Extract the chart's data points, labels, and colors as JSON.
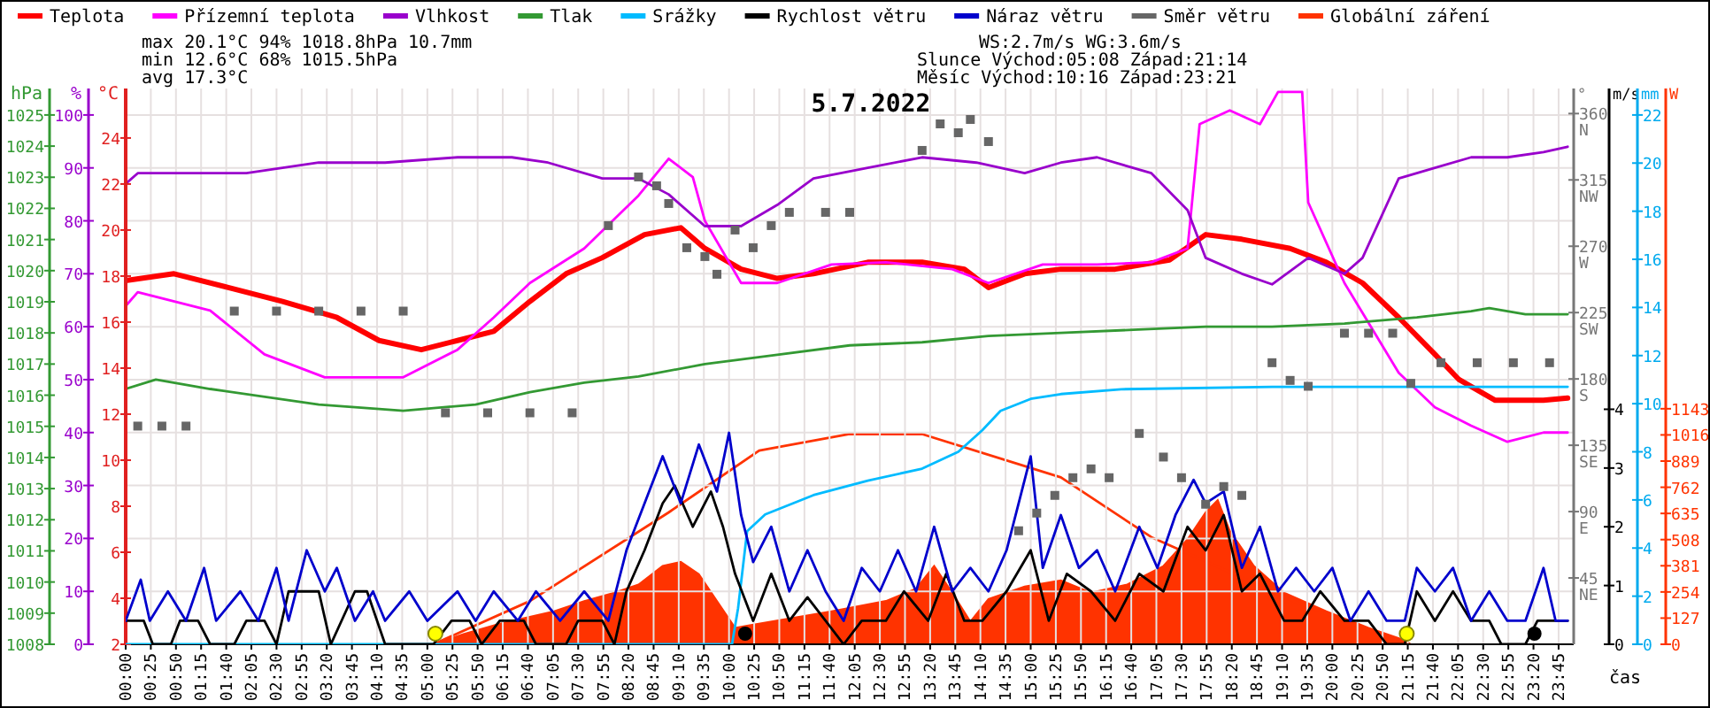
{
  "chart_data": [
    {
      "type": "line",
      "title": "5.7.2022",
      "xlabel": "čas",
      "ylabel": "%",
      "y2label": "°C",
      "y3label": "hPa",
      "annotations": [
        "max 20.1°C 94% 1018.8hPa 10.7mm",
        "min 12.6°C 68% 1015.5hPa",
        "avg 17.3°C",
        "WS:2.7m/s WG:3.6m/s",
        "Slunce Východ:05:08 Západ:21:14",
        "Měsíc Východ:10:16 Západ:23:21"
      ],
      "legend": "top",
      "grid": true,
      "xlim": [
        0,
        24
      ],
      "xticks": [
        {
          "value": 0,
          "label": "00:00"
        },
        {
          "value": 0.4167,
          "label": "00:25"
        },
        {
          "value": 0.8333,
          "label": "00:50"
        },
        {
          "value": 1.25,
          "label": "01:15"
        },
        {
          "value": 1.6667,
          "label": "01:40"
        },
        {
          "value": 2.0833,
          "label": "02:05"
        },
        {
          "value": 2.5,
          "label": "02:30"
        },
        {
          "value": 2.9167,
          "label": "02:55"
        },
        {
          "value": 3.3333,
          "label": "03:20"
        },
        {
          "value": 3.75,
          "label": "03:45"
        },
        {
          "value": 4.1667,
          "label": "04:10"
        },
        {
          "value": 4.5833,
          "label": "04:35"
        },
        {
          "value": 5,
          "label": "05:00"
        },
        {
          "value": 5.4167,
          "label": "05:25"
        },
        {
          "value": 5.8333,
          "label": "05:50"
        },
        {
          "value": 6.25,
          "label": "06:15"
        },
        {
          "value": 6.6667,
          "label": "06:40"
        },
        {
          "value": 7.0833,
          "label": "07:05"
        },
        {
          "value": 7.5,
          "label": "07:30"
        },
        {
          "value": 7.9167,
          "label": "07:55"
        },
        {
          "value": 8.3333,
          "label": "08:20"
        },
        {
          "value": 8.75,
          "label": "08:45"
        },
        {
          "value": 9.1667,
          "label": "09:10"
        },
        {
          "value": 9.5833,
          "label": "09:35"
        },
        {
          "value": 10,
          "label": "10:00"
        },
        {
          "value": 10.4167,
          "label": "10:25"
        },
        {
          "value": 10.8333,
          "label": "10:50"
        },
        {
          "value": 11.25,
          "label": "11:15"
        },
        {
          "value": 11.6667,
          "label": "11:40"
        },
        {
          "value": 12.0833,
          "label": "12:05"
        },
        {
          "value": 12.5,
          "label": "12:30"
        },
        {
          "value": 12.9167,
          "label": "12:55"
        },
        {
          "value": 13.3333,
          "label": "13:20"
        },
        {
          "value": 13.75,
          "label": "13:45"
        },
        {
          "value": 14.1667,
          "label": "14:10"
        },
        {
          "value": 14.5833,
          "label": "14:35"
        },
        {
          "value": 15,
          "label": "15:00"
        },
        {
          "value": 15.4167,
          "label": "15:25"
        },
        {
          "value": 15.8333,
          "label": "15:50"
        },
        {
          "value": 16.25,
          "label": "16:15"
        },
        {
          "value": 16.6667,
          "label": "16:40"
        },
        {
          "value": 17.0833,
          "label": "17:05"
        },
        {
          "value": 17.5,
          "label": "17:30"
        },
        {
          "value": 17.9167,
          "label": "17:55"
        },
        {
          "value": 18.3333,
          "label": "18:20"
        },
        {
          "value": 18.75,
          "label": "18:45"
        },
        {
          "value": 19.1667,
          "label": "19:10"
        },
        {
          "value": 19.5833,
          "label": "19:35"
        },
        {
          "value": 20,
          "label": "20:00"
        },
        {
          "value": 20.4167,
          "label": "20:25"
        },
        {
          "value": 20.8333,
          "label": "20:50"
        },
        {
          "value": 21.25,
          "label": "21:15"
        },
        {
          "value": 21.6667,
          "label": "21:40"
        },
        {
          "value": 22.0833,
          "label": "22:05"
        },
        {
          "value": 22.5,
          "label": "22:30"
        },
        {
          "value": 22.9167,
          "label": "22:55"
        },
        {
          "value": 23.3333,
          "label": "23:20"
        },
        {
          "value": 23.75,
          "label": "23:45"
        }
      ],
      "ylim": [
        0,
        105
      ],
      "yticks": [
        0,
        10,
        20,
        30,
        40,
        50,
        60,
        70,
        80,
        90,
        100
      ],
      "y2lim": [
        2,
        26.15
      ],
      "y2ticks": [
        2,
        4,
        6,
        8,
        10,
        12,
        14,
        16,
        18,
        20,
        22,
        24
      ],
      "y3lim": [
        1008,
        1025.85
      ],
      "y3ticks": [
        1008,
        1009,
        1010,
        1011,
        1012,
        1013,
        1014,
        1015,
        1016,
        1017,
        1018,
        1019,
        1020,
        1021,
        1022,
        1023,
        1024,
        1025
      ],
      "series": [
        {
          "name": "Teplota",
          "color": "#ff0000",
          "axis": "y2",
          "x": [
            0,
            0.8,
            1.7,
            2.6,
            3.5,
            4.2,
            4.9,
            5.5,
            6.1,
            6.7,
            7.3,
            7.9,
            8.6,
            9.2,
            9.6,
            10.2,
            10.8,
            11.4,
            12.3,
            13.2,
            13.9,
            14.3,
            14.9,
            15.5,
            16.4,
            17.3,
            17.9,
            18.5,
            19.3,
            19.9,
            20.5,
            21.1,
            21.7,
            22.1,
            22.7,
            23.5,
            23.9
          ],
          "values": [
            17.8,
            18.1,
            17.5,
            16.9,
            16.2,
            15.2,
            14.8,
            15.2,
            15.6,
            16.9,
            18.1,
            18.8,
            19.8,
            20.1,
            19.2,
            18.3,
            17.9,
            18.1,
            18.6,
            18.6,
            18.3,
            17.5,
            18.1,
            18.3,
            18.3,
            18.7,
            19.8,
            19.6,
            19.2,
            18.6,
            17.7,
            16.2,
            14.6,
            13.5,
            12.6,
            12.6,
            12.7
          ]
        },
        {
          "name": "Přízemní teplota",
          "color": "#ff00ff",
          "axis": "y2",
          "x": [
            0,
            0.2,
            1.4,
            2.3,
            3.3,
            4.6,
            5.5,
            6.1,
            6.7,
            7.6,
            8.5,
            9.0,
            9.4,
            9.6,
            10.2,
            10.8,
            11.7,
            12.6,
            13.7,
            14.3,
            15.2,
            16.1,
            17.0,
            17.6,
            17.8,
            18.3,
            18.8,
            19.1,
            19.5,
            19.6,
            20.2,
            21.1,
            21.7,
            22.3,
            22.9,
            23.5,
            23.9
          ],
          "values": [
            16.7,
            17.3,
            16.5,
            14.6,
            13.6,
            13.6,
            14.8,
            16.2,
            17.7,
            19.2,
            21.5,
            23.1,
            22.3,
            20.4,
            17.7,
            17.7,
            18.5,
            18.6,
            18.3,
            17.7,
            18.5,
            18.5,
            18.6,
            19.2,
            24.6,
            25.2,
            24.6,
            26.0,
            26.0,
            21.2,
            17.7,
            13.8,
            12.3,
            11.5,
            10.8,
            11.2,
            11.2
          ]
        },
        {
          "name": "Vlhkost",
          "color": "#9900cc",
          "x": [
            0,
            0.2,
            2.0,
            2.6,
            3.2,
            4.3,
            5.5,
            6.4,
            7.0,
            7.9,
            8.5,
            9.0,
            9.6,
            10.2,
            10.8,
            11.4,
            12.3,
            13.2,
            14.1,
            14.9,
            15.5,
            16.1,
            17.0,
            17.6,
            17.9,
            18.5,
            19.0,
            19.6,
            20.2,
            20.5,
            21.1,
            21.7,
            22.3,
            22.9,
            23.5,
            23.9
          ],
          "values": [
            87,
            89,
            89,
            90,
            91,
            91,
            92,
            92,
            91,
            88,
            88,
            85,
            79,
            79,
            83,
            88,
            90,
            92,
            91,
            89,
            91,
            92,
            89,
            82,
            73,
            70,
            68,
            73,
            70,
            73,
            88,
            90,
            92,
            92,
            93,
            94
          ]
        },
        {
          "name": "Tlak",
          "color": "#339933",
          "axis": "y3",
          "x": [
            0,
            0.5,
            1.4,
            3.2,
            4.6,
            5.8,
            6.7,
            7.6,
            8.5,
            9.6,
            10.8,
            12.0,
            13.2,
            14.3,
            15.5,
            16.7,
            17.9,
            19.0,
            20.2,
            21.4,
            22.3,
            22.6,
            23.2,
            23.9
          ],
          "values": [
            1016.2,
            1016.5,
            1016.2,
            1015.7,
            1015.5,
            1015.7,
            1016.1,
            1016.4,
            1016.6,
            1017.0,
            1017.3,
            1017.6,
            1017.7,
            1017.9,
            1018.0,
            1018.1,
            1018.2,
            1018.2,
            1018.3,
            1018.5,
            1018.7,
            1018.8,
            1018.6,
            1018.6
          ]
        }
      ]
    },
    {
      "type": "line",
      "ylabel": "°",
      "y2label": "m/s",
      "y3label": "mm",
      "legend": "top",
      "tick_labels": "y",
      "xlim": [
        0,
        24
      ],
      "ylim": [
        0,
        377
      ],
      "yticks": [
        {
          "value": 45,
          "label": "45 NE"
        },
        {
          "value": 90,
          "label": "90 E"
        },
        {
          "value": 135,
          "label": "135 SE"
        },
        {
          "value": 180,
          "label": "180 S"
        },
        {
          "value": 225,
          "label": "225 SW"
        },
        {
          "value": 270,
          "label": "270 W"
        },
        {
          "value": 315,
          "label": "315 NW"
        },
        {
          "value": 360,
          "label": "360 N"
        }
      ],
      "y2lim": [
        0,
        9.46
      ],
      "y2ticks": [
        0,
        1,
        2,
        3,
        4
      ],
      "y3lim": [
        0,
        23.1
      ],
      "y3ticks": [
        0,
        2,
        4,
        6,
        8,
        10,
        12,
        14,
        16,
        18,
        20,
        22
      ],
      "series": [
        {
          "name": "Srážky",
          "color": "#00bbff",
          "axis": "y3",
          "x": [
            0,
            10.05,
            10.15,
            10.3,
            10.6,
            11.4,
            12.3,
            13.2,
            13.8,
            14.2,
            14.5,
            15.0,
            15.5,
            16.5,
            19.0,
            23.9
          ],
          "values": [
            0,
            0,
            1.5,
            4.7,
            5.4,
            6.2,
            6.8,
            7.3,
            8.0,
            8.9,
            9.7,
            10.2,
            10.4,
            10.6,
            10.7,
            10.7
          ]
        },
        {
          "name": "Rychlost větru",
          "color": "#000000",
          "axis": "y2",
          "x": [
            0,
            0.3,
            0.45,
            0.75,
            0.9,
            1.2,
            1.4,
            1.8,
            2.0,
            2.3,
            2.5,
            2.7,
            3.2,
            3.4,
            3.8,
            4.0,
            4.3,
            5.1,
            5.4,
            5.7,
            5.9,
            6.2,
            6.6,
            6.8,
            7.3,
            7.5,
            7.9,
            8.1,
            8.3,
            8.6,
            8.9,
            9.1,
            9.4,
            9.7,
            9.9,
            10.1,
            10.4,
            10.7,
            11.0,
            11.3,
            11.6,
            11.9,
            12.2,
            12.6,
            12.9,
            13.3,
            13.6,
            13.9,
            14.2,
            14.6,
            15.0,
            15.3,
            15.6,
            16.0,
            16.4,
            16.8,
            17.2,
            17.6,
            17.9,
            18.2,
            18.5,
            18.8,
            19.2,
            19.5,
            19.8,
            20.2,
            20.6,
            20.9,
            21.2,
            21.4,
            21.7,
            22.0,
            22.3,
            22.6,
            22.8,
            23.2,
            23.4,
            23.9
          ],
          "values": [
            0.4,
            0.4,
            0,
            0,
            0.4,
            0.4,
            0,
            0,
            0.4,
            0.4,
            0,
            0.9,
            0.9,
            0,
            0.9,
            0.9,
            0,
            0,
            0.4,
            0.4,
            0,
            0.4,
            0.4,
            0,
            0,
            0.4,
            0.4,
            0,
            0.9,
            1.6,
            2.4,
            2.7,
            2.0,
            2.6,
            2.0,
            1.2,
            0.4,
            1.2,
            0.4,
            0.8,
            0.4,
            0,
            0.4,
            0.4,
            0.9,
            0.4,
            1.2,
            0.4,
            0.4,
            0.9,
            1.6,
            0.4,
            1.2,
            0.9,
            0.4,
            1.2,
            0.9,
            2.0,
            1.6,
            2.2,
            0.9,
            1.2,
            0.4,
            0.4,
            0.9,
            0.4,
            0.4,
            0,
            0,
            0.9,
            0.4,
            0.9,
            0.4,
            0.4,
            0,
            0,
            0.4,
            0.4
          ]
        },
        {
          "name": "Náraz větru",
          "color": "#0000cc",
          "axis": "y2",
          "x": [
            0,
            0.25,
            0.4,
            0.7,
            1.0,
            1.3,
            1.5,
            1.9,
            2.2,
            2.5,
            2.7,
            3.0,
            3.3,
            3.5,
            3.8,
            4.1,
            4.3,
            4.7,
            5.0,
            5.5,
            5.8,
            6.1,
            6.5,
            6.8,
            7.2,
            7.6,
            8.0,
            8.3,
            8.6,
            8.9,
            9.2,
            9.5,
            9.8,
            10.0,
            10.2,
            10.4,
            10.7,
            11.0,
            11.3,
            11.6,
            11.9,
            12.2,
            12.5,
            12.8,
            13.1,
            13.4,
            13.7,
            14.0,
            14.3,
            14.6,
            15.0,
            15.2,
            15.5,
            15.8,
            16.1,
            16.4,
            16.8,
            17.1,
            17.4,
            17.7,
            17.9,
            18.2,
            18.5,
            18.8,
            19.1,
            19.4,
            19.7,
            20.0,
            20.3,
            20.6,
            20.9,
            21.2,
            21.4,
            21.7,
            22.0,
            22.3,
            22.6,
            22.9,
            23.2,
            23.5,
            23.7,
            23.9
          ],
          "values": [
            0.4,
            1.1,
            0.4,
            0.9,
            0.4,
            1.3,
            0.4,
            0.9,
            0.4,
            1.3,
            0.4,
            1.6,
            0.9,
            1.3,
            0.4,
            0.9,
            0.4,
            0.9,
            0.4,
            0.9,
            0.4,
            0.9,
            0.4,
            0.9,
            0.4,
            0.9,
            0.4,
            1.6,
            2.4,
            3.2,
            2.4,
            3.4,
            2.6,
            3.6,
            2.2,
            1.4,
            2.0,
            0.9,
            1.6,
            0.9,
            0.4,
            1.3,
            0.9,
            1.6,
            0.9,
            2.0,
            0.9,
            1.3,
            0.9,
            1.6,
            3.2,
            1.3,
            2.2,
            1.3,
            1.6,
            0.9,
            2.0,
            1.3,
            2.2,
            2.8,
            2.4,
            2.6,
            1.3,
            2.0,
            0.9,
            1.3,
            0.9,
            1.3,
            0.4,
            0.9,
            0.4,
            0.4,
            1.3,
            0.9,
            1.3,
            0.4,
            0.9,
            0.4,
            0.4,
            1.3,
            0.4,
            0.4
          ]
        },
        {
          "name": "Směr větru",
          "color": "#666666",
          "type": "scatter",
          "marker": "square",
          "x": [
            0.2,
            0.6,
            1.0,
            1.8,
            2.5,
            3.2,
            3.9,
            4.6,
            5.3,
            6.0,
            6.7,
            7.4,
            8.0,
            8.5,
            8.8,
            9.0,
            9.3,
            9.6,
            9.8,
            10.1,
            10.4,
            10.7,
            11.0,
            11.6,
            12.0,
            13.2,
            13.5,
            13.8,
            14.0,
            14.3,
            14.8,
            15.1,
            15.4,
            15.7,
            16.0,
            16.3,
            16.8,
            17.2,
            17.5,
            17.9,
            18.2,
            18.5,
            19.0,
            19.3,
            19.6,
            20.2,
            20.6,
            21.0,
            21.3,
            21.8,
            22.4,
            23.0,
            23.6
          ],
          "values": [
            148,
            148,
            148,
            226,
            226,
            226,
            226,
            226,
            157,
            157,
            157,
            157,
            284,
            317,
            311,
            299,
            269,
            263,
            251,
            281,
            269,
            284,
            293,
            293,
            293,
            335,
            353,
            347,
            356,
            341,
            77,
            89,
            101,
            113,
            119,
            113,
            143,
            127,
            113,
            95,
            107,
            101,
            191,
            179,
            175,
            211,
            211,
            211,
            177,
            191,
            191,
            191,
            191
          ]
        }
      ]
    },
    {
      "type": "line",
      "ylabel": "W",
      "legend": "top",
      "tick_labels": "y",
      "xlim": [
        0,
        24
      ],
      "ylim": [
        0,
        2697
      ],
      "yticks": [
        0,
        127,
        254,
        381,
        508,
        635,
        762,
        889,
        1016,
        1143
      ],
      "series": [
        {
          "name": "Globální záření",
          "color": "#ff3300",
          "type": "area",
          "x": [
            5.1,
            5.6,
            6.2,
            7.1,
            7.6,
            8.1,
            8.5,
            8.9,
            9.2,
            9.5,
            9.8,
            10.1,
            10.3,
            10.9,
            11.7,
            12.6,
            13.1,
            13.4,
            13.7,
            14.0,
            14.3,
            14.9,
            15.5,
            16.0,
            16.6,
            17.2,
            17.6,
            17.9,
            18.1,
            18.3,
            18.7,
            19.2,
            19.9,
            20.6,
            21.2,
            21.3,
            23.9
          ],
          "values": [
            0,
            50,
            100,
            160,
            210,
            250,
            290,
            380,
            400,
            340,
            210,
            80,
            90,
            120,
            160,
            210,
            270,
            380,
            250,
            110,
            220,
            280,
            310,
            250,
            290,
            380,
            510,
            640,
            700,
            550,
            380,
            250,
            160,
            80,
            20,
            0,
            0
          ]
        },
        {
          "color": "#ff3300",
          "x": [
            5.1,
            6.7,
            9.0,
            10.5,
            12.0,
            13.2,
            15.5,
            17.0,
            18.0,
            19.35,
            20.5,
            21.2
          ],
          "values": [
            0,
            210,
            640,
            940,
            1020,
            1020,
            810,
            520,
            390,
            210,
            80,
            0
          ]
        }
      ]
    }
  ]
}
